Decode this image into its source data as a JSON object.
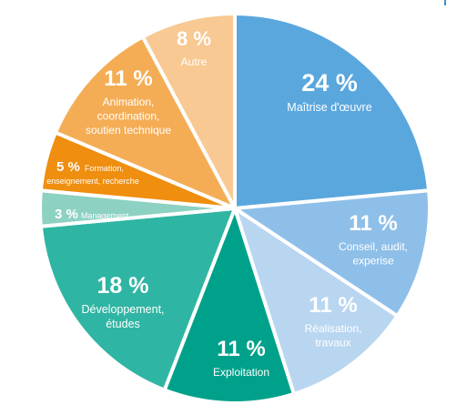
{
  "chart_data": {
    "type": "pie",
    "slices": [
      {
        "pct_label": "24 %",
        "value": 24,
        "label_lines": [
          "Maîtrise d'œuvre"
        ],
        "color": "#5aa7de"
      },
      {
        "pct_label": "11 %",
        "value": 11,
        "label_lines": [
          "Conseil, audit,",
          "experise"
        ],
        "color": "#8ebfe8"
      },
      {
        "pct_label": "11 %",
        "value": 11,
        "label_lines": [
          "Réalisation,",
          "travaux"
        ],
        "color": "#b9d6f1"
      },
      {
        "pct_label": "11 %",
        "value": 11,
        "label_lines": [
          "Exploitation"
        ],
        "color": "#00a18a"
      },
      {
        "pct_label": "18 %",
        "value": 18,
        "label_lines": [
          "Développement,",
          "études"
        ],
        "color": "#2fb5a3"
      },
      {
        "pct_label": "3 %",
        "value": 3,
        "label_lines": [
          "Management"
        ],
        "color": "#8dd1c2"
      },
      {
        "pct_label": "5 %",
        "value": 5,
        "label_lines": [
          "Formation,",
          "enseignement, recherche"
        ],
        "color": "#ef8e0f"
      },
      {
        "pct_label": "11 %",
        "value": 11,
        "label_lines": [
          "Animation,",
          "coordination,",
          "soutien technique"
        ],
        "color": "#f4ad55"
      },
      {
        "pct_label": "8 %",
        "value": 8,
        "label_lines": [
          "Autre"
        ],
        "color": "#f8c992"
      }
    ]
  }
}
